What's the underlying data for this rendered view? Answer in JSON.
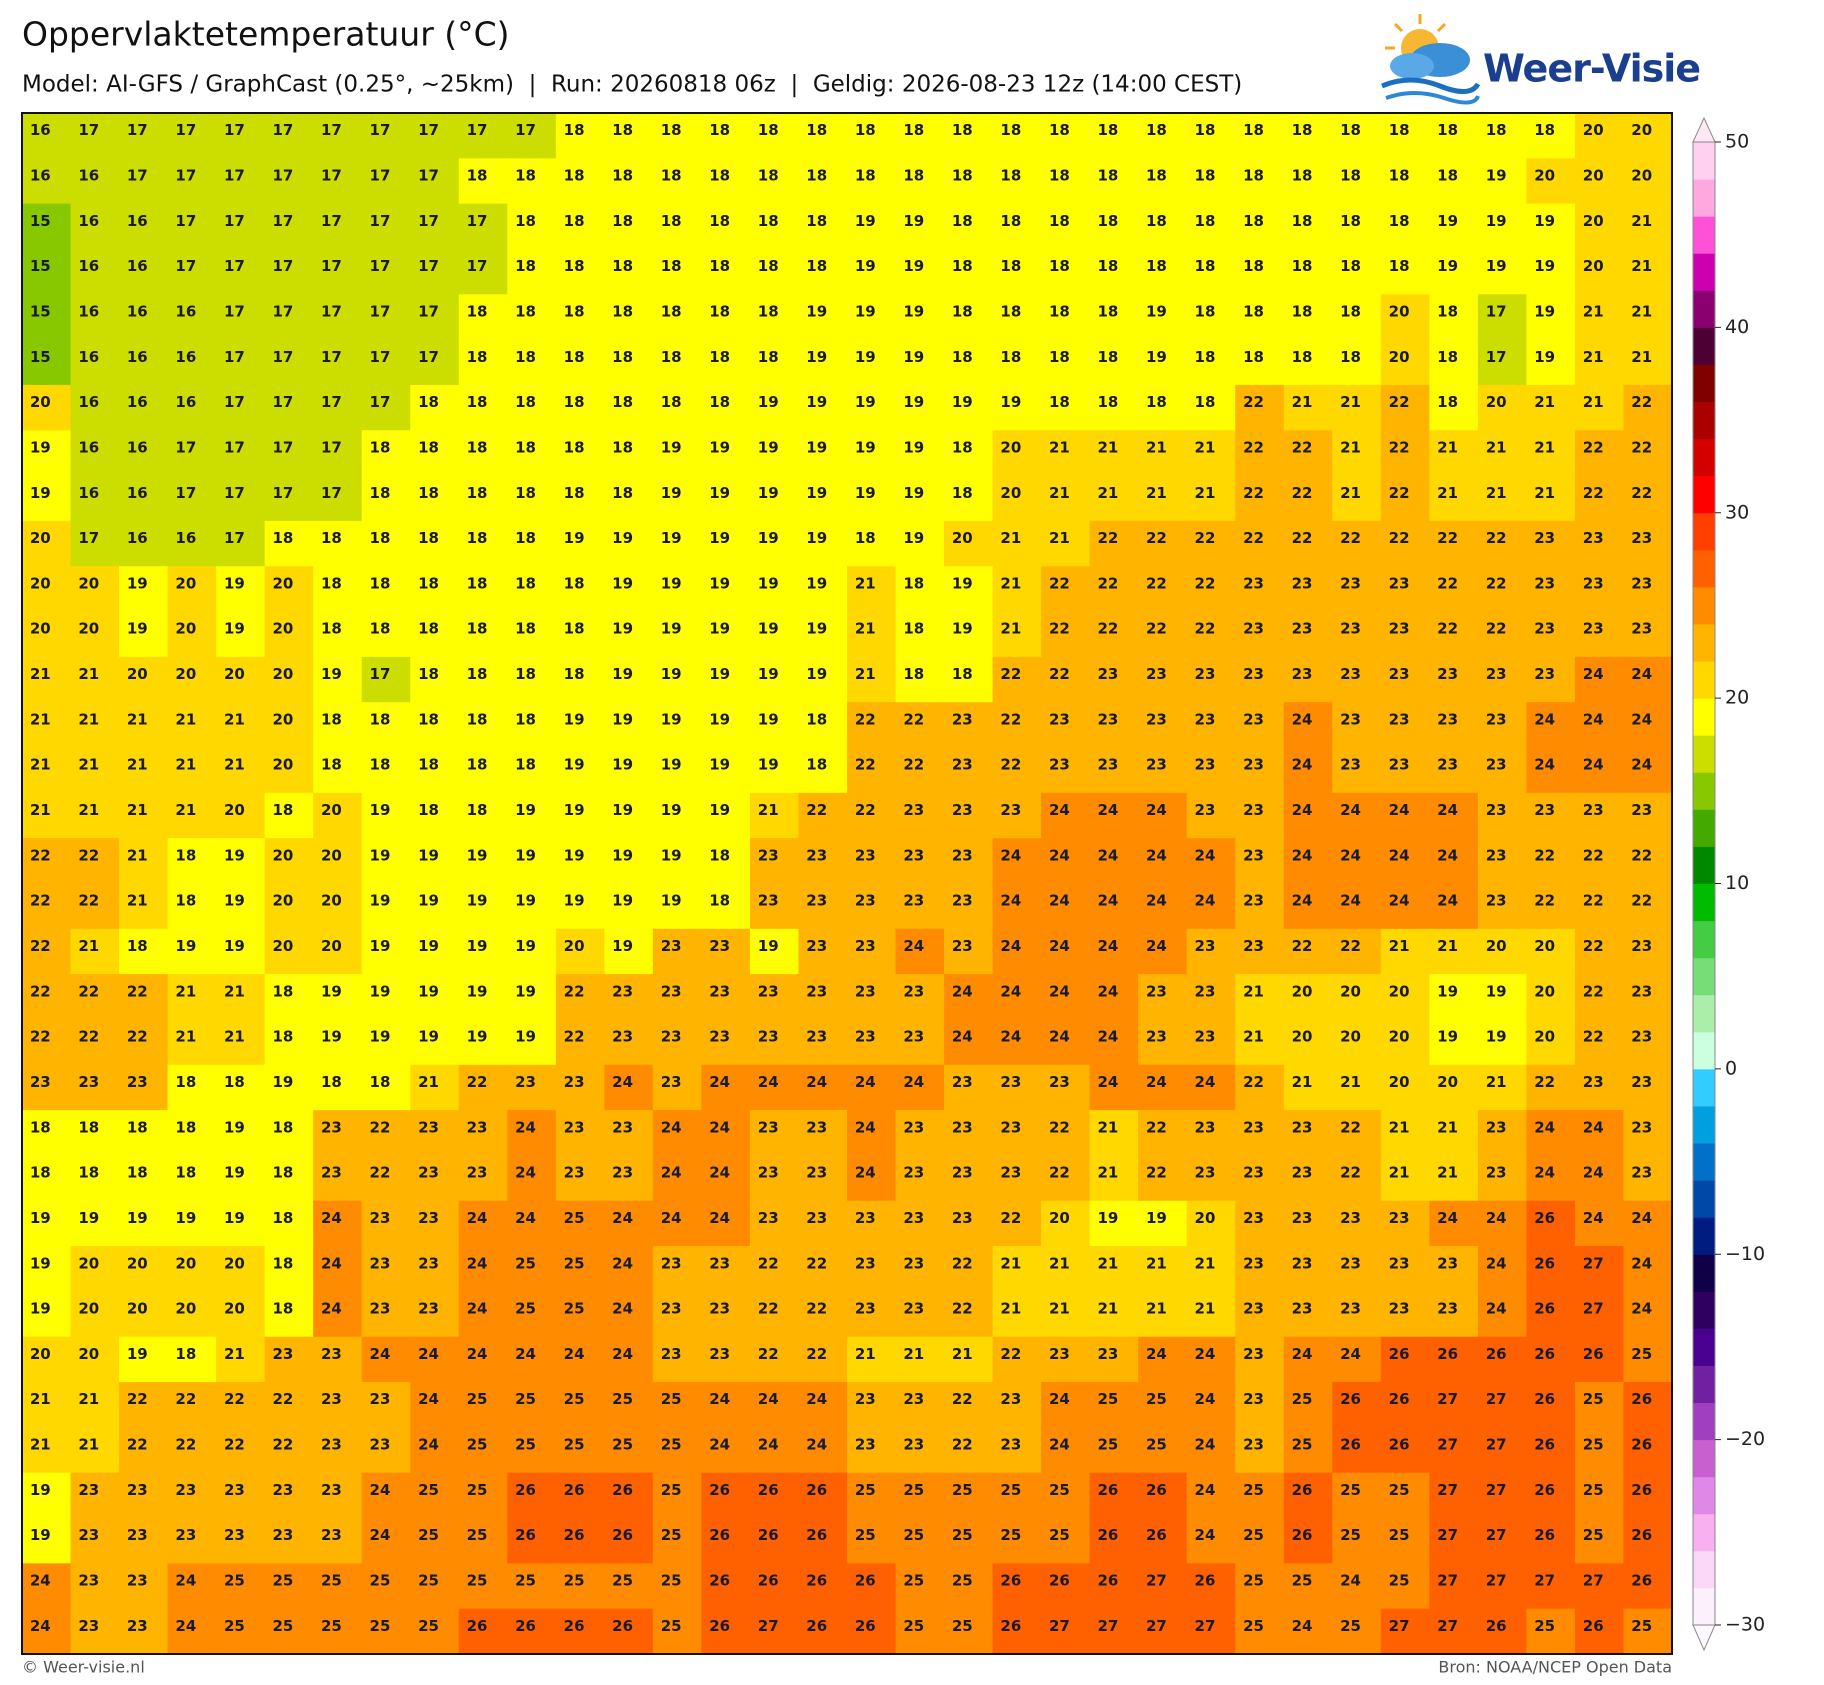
{
  "header": {
    "title": "Oppervlaktetemperatuur (°C)",
    "subtitle": "Model: AI-GFS / GraphCast (0.25°, ~25km)  |  Run: 20260818 06z  |  Geldig: 2026-08-23 12z (14:00 CEST)"
  },
  "logo": {
    "text": "Weer-Visie"
  },
  "map": {
    "values": [
      [
        16,
        17,
        17,
        17,
        17,
        17,
        17,
        17,
        17,
        17,
        17,
        18,
        18,
        18,
        18,
        18,
        18,
        18,
        18,
        18,
        18,
        18,
        18,
        18,
        18,
        18,
        18,
        18,
        18,
        18,
        18,
        18,
        20,
        20
      ],
      [
        16,
        16,
        17,
        17,
        17,
        17,
        17,
        17,
        17,
        18,
        18,
        18,
        18,
        18,
        18,
        18,
        18,
        18,
        18,
        18,
        18,
        18,
        18,
        18,
        18,
        18,
        18,
        18,
        18,
        18,
        19,
        20,
        20,
        20
      ],
      [
        15,
        16,
        16,
        17,
        17,
        17,
        17,
        17,
        17,
        17,
        18,
        18,
        18,
        18,
        18,
        18,
        18,
        19,
        19,
        18,
        18,
        18,
        18,
        18,
        18,
        18,
        18,
        18,
        18,
        19,
        19,
        19,
        20,
        21
      ],
      [
        15,
        16,
        16,
        17,
        17,
        17,
        17,
        17,
        17,
        17,
        18,
        18,
        18,
        18,
        18,
        18,
        18,
        19,
        19,
        18,
        18,
        18,
        18,
        18,
        18,
        18,
        18,
        18,
        18,
        19,
        19,
        19,
        20,
        21
      ],
      [
        15,
        16,
        16,
        16,
        17,
        17,
        17,
        17,
        17,
        18,
        18,
        18,
        18,
        18,
        18,
        18,
        19,
        19,
        19,
        18,
        18,
        18,
        18,
        19,
        18,
        18,
        18,
        18,
        20,
        18,
        17,
        19,
        21,
        21
      ],
      [
        15,
        16,
        16,
        16,
        17,
        17,
        17,
        17,
        17,
        18,
        18,
        18,
        18,
        18,
        18,
        18,
        19,
        19,
        19,
        18,
        18,
        18,
        18,
        19,
        18,
        18,
        18,
        18,
        20,
        18,
        17,
        19,
        21,
        21
      ],
      [
        20,
        16,
        16,
        16,
        17,
        17,
        17,
        17,
        18,
        18,
        18,
        18,
        18,
        18,
        18,
        19,
        19,
        19,
        19,
        19,
        19,
        18,
        18,
        18,
        18,
        22,
        21,
        21,
        22,
        18,
        20,
        21,
        21,
        22
      ],
      [
        19,
        16,
        16,
        17,
        17,
        17,
        17,
        18,
        18,
        18,
        18,
        18,
        18,
        19,
        19,
        19,
        19,
        19,
        19,
        18,
        20,
        21,
        21,
        21,
        21,
        22,
        22,
        21,
        22,
        21,
        21,
        21,
        22,
        22
      ],
      [
        19,
        16,
        16,
        17,
        17,
        17,
        17,
        18,
        18,
        18,
        18,
        18,
        18,
        19,
        19,
        19,
        19,
        19,
        19,
        18,
        20,
        21,
        21,
        21,
        21,
        22,
        22,
        21,
        22,
        21,
        21,
        21,
        22,
        22
      ],
      [
        20,
        17,
        16,
        16,
        17,
        18,
        18,
        18,
        18,
        18,
        18,
        19,
        19,
        19,
        19,
        19,
        19,
        18,
        19,
        20,
        21,
        21,
        22,
        22,
        22,
        22,
        22,
        22,
        22,
        22,
        22,
        23,
        23,
        23
      ],
      [
        20,
        20,
        19,
        20,
        19,
        20,
        18,
        18,
        18,
        18,
        18,
        18,
        19,
        19,
        19,
        19,
        19,
        21,
        18,
        19,
        21,
        22,
        22,
        22,
        22,
        23,
        23,
        23,
        23,
        22,
        22,
        23,
        23,
        23
      ],
      [
        20,
        20,
        19,
        20,
        19,
        20,
        18,
        18,
        18,
        18,
        18,
        18,
        19,
        19,
        19,
        19,
        19,
        21,
        18,
        19,
        21,
        22,
        22,
        22,
        22,
        23,
        23,
        23,
        23,
        22,
        22,
        23,
        23,
        23
      ],
      [
        21,
        21,
        20,
        20,
        20,
        20,
        19,
        17,
        18,
        18,
        18,
        18,
        19,
        19,
        19,
        19,
        19,
        21,
        18,
        18,
        22,
        22,
        23,
        23,
        23,
        23,
        23,
        23,
        23,
        23,
        23,
        23,
        24,
        24
      ],
      [
        21,
        21,
        21,
        21,
        21,
        20,
        18,
        18,
        18,
        18,
        18,
        19,
        19,
        19,
        19,
        19,
        18,
        22,
        22,
        23,
        22,
        23,
        23,
        23,
        23,
        23,
        24,
        23,
        23,
        23,
        23,
        24,
        24,
        24
      ],
      [
        21,
        21,
        21,
        21,
        21,
        20,
        18,
        18,
        18,
        18,
        18,
        19,
        19,
        19,
        19,
        19,
        18,
        22,
        22,
        23,
        22,
        23,
        23,
        23,
        23,
        23,
        24,
        23,
        23,
        23,
        23,
        24,
        24,
        24
      ],
      [
        21,
        21,
        21,
        21,
        20,
        18,
        20,
        19,
        18,
        18,
        19,
        19,
        19,
        19,
        19,
        21,
        22,
        22,
        23,
        23,
        23,
        24,
        24,
        24,
        23,
        23,
        24,
        24,
        24,
        24,
        23,
        23,
        23,
        23
      ],
      [
        22,
        22,
        21,
        18,
        19,
        20,
        20,
        19,
        19,
        19,
        19,
        19,
        19,
        19,
        18,
        23,
        23,
        23,
        23,
        23,
        24,
        24,
        24,
        24,
        24,
        23,
        24,
        24,
        24,
        24,
        23,
        22,
        22,
        22
      ],
      [
        22,
        22,
        21,
        18,
        19,
        20,
        20,
        19,
        19,
        19,
        19,
        19,
        19,
        19,
        18,
        23,
        23,
        23,
        23,
        23,
        24,
        24,
        24,
        24,
        24,
        23,
        24,
        24,
        24,
        24,
        23,
        22,
        22,
        22
      ],
      [
        22,
        21,
        18,
        19,
        19,
        20,
        20,
        19,
        19,
        19,
        19,
        20,
        19,
        23,
        23,
        19,
        23,
        23,
        24,
        23,
        24,
        24,
        24,
        24,
        23,
        23,
        22,
        22,
        21,
        21,
        20,
        20,
        22,
        23
      ],
      [
        22,
        22,
        22,
        21,
        21,
        18,
        19,
        19,
        19,
        19,
        19,
        22,
        23,
        23,
        23,
        23,
        23,
        23,
        23,
        24,
        24,
        24,
        24,
        23,
        23,
        21,
        20,
        20,
        20,
        19,
        19,
        20,
        22,
        23
      ],
      [
        22,
        22,
        22,
        21,
        21,
        18,
        19,
        19,
        19,
        19,
        19,
        22,
        23,
        23,
        23,
        23,
        23,
        23,
        23,
        24,
        24,
        24,
        24,
        23,
        23,
        21,
        20,
        20,
        20,
        19,
        19,
        20,
        22,
        23
      ],
      [
        23,
        23,
        23,
        18,
        18,
        19,
        18,
        18,
        21,
        22,
        23,
        23,
        24,
        23,
        24,
        24,
        24,
        24,
        24,
        23,
        23,
        23,
        24,
        24,
        24,
        22,
        21,
        21,
        20,
        20,
        21,
        22,
        23,
        23
      ],
      [
        18,
        18,
        18,
        18,
        19,
        18,
        23,
        22,
        23,
        23,
        24,
        23,
        23,
        24,
        24,
        23,
        23,
        24,
        23,
        23,
        23,
        22,
        21,
        22,
        23,
        23,
        23,
        22,
        21,
        21,
        23,
        24,
        24,
        23
      ],
      [
        18,
        18,
        18,
        18,
        19,
        18,
        23,
        22,
        23,
        23,
        24,
        23,
        23,
        24,
        24,
        23,
        23,
        24,
        23,
        23,
        23,
        22,
        21,
        22,
        23,
        23,
        23,
        22,
        21,
        21,
        23,
        24,
        24,
        23
      ],
      [
        19,
        19,
        19,
        19,
        19,
        18,
        24,
        23,
        23,
        24,
        24,
        25,
        24,
        24,
        24,
        23,
        23,
        23,
        23,
        23,
        22,
        20,
        19,
        19,
        20,
        23,
        23,
        23,
        23,
        24,
        24,
        26,
        24,
        24
      ],
      [
        19,
        20,
        20,
        20,
        20,
        18,
        24,
        23,
        23,
        24,
        25,
        25,
        24,
        23,
        23,
        22,
        22,
        23,
        23,
        22,
        21,
        21,
        21,
        21,
        21,
        23,
        23,
        23,
        23,
        23,
        24,
        26,
        27,
        24
      ],
      [
        19,
        20,
        20,
        20,
        20,
        18,
        24,
        23,
        23,
        24,
        25,
        25,
        24,
        23,
        23,
        22,
        22,
        23,
        23,
        22,
        21,
        21,
        21,
        21,
        21,
        23,
        23,
        23,
        23,
        23,
        24,
        26,
        27,
        24
      ],
      [
        20,
        20,
        19,
        18,
        21,
        23,
        23,
        24,
        24,
        24,
        24,
        24,
        24,
        23,
        23,
        22,
        22,
        21,
        21,
        21,
        22,
        23,
        23,
        24,
        24,
        23,
        24,
        24,
        26,
        26,
        26,
        26,
        26,
        25
      ],
      [
        21,
        21,
        22,
        22,
        22,
        22,
        23,
        23,
        24,
        25,
        25,
        25,
        25,
        25,
        24,
        24,
        24,
        23,
        23,
        22,
        23,
        24,
        25,
        25,
        24,
        23,
        25,
        26,
        26,
        27,
        27,
        26,
        25,
        26
      ],
      [
        21,
        21,
        22,
        22,
        22,
        22,
        23,
        23,
        24,
        25,
        25,
        25,
        25,
        25,
        24,
        24,
        24,
        23,
        23,
        22,
        23,
        24,
        25,
        25,
        24,
        23,
        25,
        26,
        26,
        27,
        27,
        26,
        25,
        26
      ],
      [
        19,
        23,
        23,
        23,
        23,
        23,
        23,
        24,
        25,
        25,
        26,
        26,
        26,
        25,
        26,
        26,
        26,
        25,
        25,
        25,
        25,
        25,
        26,
        26,
        24,
        25,
        26,
        25,
        25,
        27,
        27,
        26,
        25,
        26
      ],
      [
        19,
        23,
        23,
        23,
        23,
        23,
        23,
        24,
        25,
        25,
        26,
        26,
        26,
        25,
        26,
        26,
        26,
        25,
        25,
        25,
        25,
        25,
        26,
        26,
        24,
        25,
        26,
        25,
        25,
        27,
        27,
        26,
        25,
        26
      ],
      [
        24,
        23,
        23,
        24,
        25,
        25,
        25,
        25,
        25,
        25,
        25,
        25,
        25,
        25,
        26,
        26,
        26,
        26,
        25,
        25,
        26,
        26,
        26,
        27,
        26,
        25,
        25,
        24,
        25,
        27,
        27,
        27,
        27,
        26
      ],
      [
        24,
        23,
        23,
        24,
        25,
        25,
        25,
        25,
        25,
        26,
        26,
        26,
        26,
        25,
        26,
        27,
        26,
        26,
        25,
        25,
        26,
        27,
        27,
        27,
        27,
        25,
        24,
        25,
        27,
        27,
        26,
        25,
        26,
        25
      ]
    ]
  },
  "colorbar": {
    "lim": [
      -30,
      50
    ],
    "ticks": [
      50,
      40,
      30,
      20,
      10,
      0,
      {
        "value": -10,
        "label": "−10"
      },
      {
        "value": -20,
        "label": "−20"
      },
      {
        "value": -30,
        "label": "−30"
      }
    ],
    "colors": [
      "#fdf0fd",
      "#fcd8f8",
      "#f8b0f0",
      "#e088e8",
      "#c860d0",
      "#a040c0",
      "#7020a0",
      "#4a0090",
      "#300060",
      "#100048",
      "#001c80",
      "#0048a8",
      "#0070c8",
      "#00a0e0",
      "#33ccff",
      "#ccffe0",
      "#aaeeaa",
      "#77dd77",
      "#44cc44",
      "#00bb00",
      "#008800",
      "#44aa00",
      "#88c800",
      "#ccdd00",
      "#ffff00",
      "#ffd800",
      "#ffb400",
      "#ff8c00",
      "#ff6000",
      "#ff4000",
      "#ff0000",
      "#d40000",
      "#aa0000",
      "#800000",
      "#4d0033",
      "#8a0070",
      "#cc00b0",
      "#ff50d8",
      "#ffa8e0",
      "#ffd0f0"
    ]
  },
  "footer": {
    "left": "© Weer-visie.nl",
    "right": "Bron: NOAA/NCEP Open Data"
  }
}
